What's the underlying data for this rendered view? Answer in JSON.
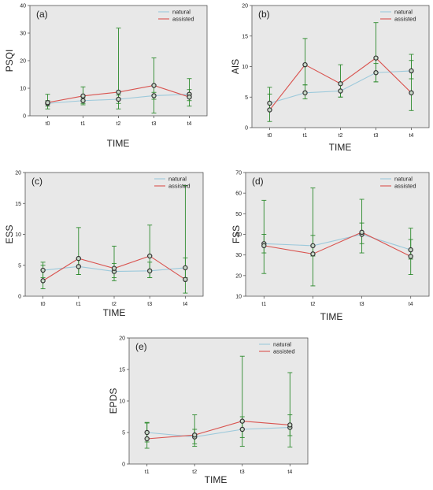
{
  "chart_data": [
    {
      "type": "line",
      "panel_label": "(a)",
      "xlabel": "TIME",
      "ylabel": "PSQI",
      "categories": [
        "t0",
        "t1",
        "t2",
        "t3",
        "t4"
      ],
      "ylim": [
        0,
        40
      ],
      "yticks": [
        0,
        10,
        20,
        30,
        40
      ],
      "grid": false,
      "legend_position": "top-right",
      "series": [
        {
          "name": "natural",
          "color": "#9cc9db",
          "values": [
            4.5,
            5.5,
            6.0,
            7.3,
            7.8
          ]
        },
        {
          "name": "assisted",
          "color": "#d9534f",
          "values": [
            4.8,
            7.2,
            8.6,
            11.0,
            6.8
          ]
        }
      ],
      "error_bars": [
        {
          "name": "natural",
          "lower": [
            3.5,
            4.5,
            4.5,
            6.0,
            5.5
          ],
          "upper": [
            5.5,
            6.5,
            7.5,
            8.5,
            9.5
          ]
        },
        {
          "name": "assisted",
          "lower": [
            2.5,
            4.0,
            2.5,
            1.0,
            3.5
          ],
          "upper": [
            7.8,
            10.5,
            31.8,
            21.0,
            13.5
          ]
        }
      ]
    },
    {
      "type": "line",
      "panel_label": "(b)",
      "xlabel": "TIME",
      "ylabel": "AIS",
      "categories": [
        "t0",
        "t1",
        "t2",
        "t3",
        "t4"
      ],
      "ylim": [
        0,
        20
      ],
      "yticks": [
        0,
        5,
        10,
        15,
        20
      ],
      "grid": false,
      "legend_position": "top-right",
      "series": [
        {
          "name": "natural",
          "color": "#9cc9db",
          "values": [
            4.0,
            5.7,
            6.0,
            9.0,
            9.3
          ]
        },
        {
          "name": "assisted",
          "color": "#d9534f",
          "values": [
            2.9,
            10.3,
            7.2,
            11.4,
            5.7
          ]
        }
      ],
      "error_bars": [
        {
          "name": "natural",
          "lower": [
            3.0,
            4.7,
            5.0,
            7.5,
            8.0
          ],
          "upper": [
            5.5,
            7.0,
            7.2,
            10.5,
            11.0
          ]
        },
        {
          "name": "assisted",
          "lower": [
            1.0,
            7.0,
            5.0,
            7.5,
            2.8
          ],
          "upper": [
            6.6,
            14.6,
            10.3,
            17.2,
            12.0
          ]
        }
      ]
    },
    {
      "type": "line",
      "panel_label": "(c)",
      "xlabel": "TIME",
      "ylabel": "ESS",
      "categories": [
        "t0",
        "t1",
        "t2",
        "t3",
        "t4"
      ],
      "ylim": [
        0,
        20
      ],
      "yticks": [
        0,
        5,
        10,
        15,
        20
      ],
      "grid": false,
      "legend_position": "top-right",
      "series": [
        {
          "name": "natural",
          "color": "#9cc9db",
          "values": [
            4.2,
            4.8,
            4.0,
            4.1,
            4.6
          ]
        },
        {
          "name": "assisted",
          "color": "#d9534f",
          "values": [
            2.5,
            6.1,
            4.5,
            6.5,
            2.7
          ]
        }
      ],
      "error_bars": [
        {
          "name": "natural",
          "lower": [
            3.0,
            3.5,
            3.0,
            3.0,
            3.0
          ],
          "upper": [
            5.5,
            6.0,
            5.3,
            5.5,
            6.2
          ]
        },
        {
          "name": "assisted",
          "lower": [
            1.2,
            3.5,
            2.5,
            3.0,
            0.5
          ],
          "upper": [
            5.0,
            11.1,
            8.1,
            11.5,
            17.9
          ]
        }
      ]
    },
    {
      "type": "line",
      "panel_label": "(d)",
      "xlabel": "TIME",
      "ylabel": "FSS",
      "categories": [
        "t1",
        "t2",
        "t3",
        "t4"
      ],
      "ylim": [
        10,
        70
      ],
      "yticks": [
        10,
        20,
        30,
        40,
        50,
        60,
        70
      ],
      "grid": false,
      "legend_position": "top-right",
      "series": [
        {
          "name": "natural",
          "color": "#9cc9db",
          "values": [
            35.5,
            34.5,
            40.0,
            32.5
          ]
        },
        {
          "name": "assisted",
          "color": "#d9534f",
          "values": [
            34.5,
            30.5,
            41.0,
            29.3
          ]
        }
      ],
      "error_bars": [
        {
          "name": "natural",
          "lower": [
            31.0,
            29.5,
            35.5,
            28.0
          ],
          "upper": [
            40.0,
            39.5,
            45.5,
            37.5
          ]
        },
        {
          "name": "assisted",
          "lower": [
            21.0,
            15.0,
            31.0,
            20.5
          ],
          "upper": [
            56.5,
            62.5,
            57.0,
            43.0
          ]
        }
      ]
    },
    {
      "type": "line",
      "panel_label": "(e)",
      "xlabel": "TIME",
      "ylabel": "EPDS",
      "categories": [
        "t1",
        "t2",
        "t3",
        "t4"
      ],
      "ylim": [
        0,
        20
      ],
      "yticks": [
        0,
        5,
        10,
        15,
        20
      ],
      "grid": false,
      "legend_position": "top-right",
      "series": [
        {
          "name": "natural",
          "color": "#9cc9db",
          "values": [
            5.0,
            4.3,
            5.5,
            5.8
          ]
        },
        {
          "name": "assisted",
          "color": "#d9534f",
          "values": [
            4.0,
            4.6,
            6.8,
            6.2
          ]
        }
      ],
      "error_bars": [
        {
          "name": "natural",
          "lower": [
            3.5,
            3.2,
            4.2,
            4.5
          ],
          "upper": [
            6.5,
            5.5,
            7.5,
            7.8
          ]
        },
        {
          "name": "assisted",
          "lower": [
            2.5,
            2.8,
            2.8,
            2.7
          ],
          "upper": [
            6.6,
            7.8,
            17.1,
            14.5
          ]
        }
      ]
    }
  ],
  "style": {
    "panel_bg": "#e8e8e8",
    "axis_color": "#555555",
    "errorbar_color": "#2e8b2e",
    "marker_edge": "#333333",
    "marker_fill": "#c8d8c8"
  }
}
